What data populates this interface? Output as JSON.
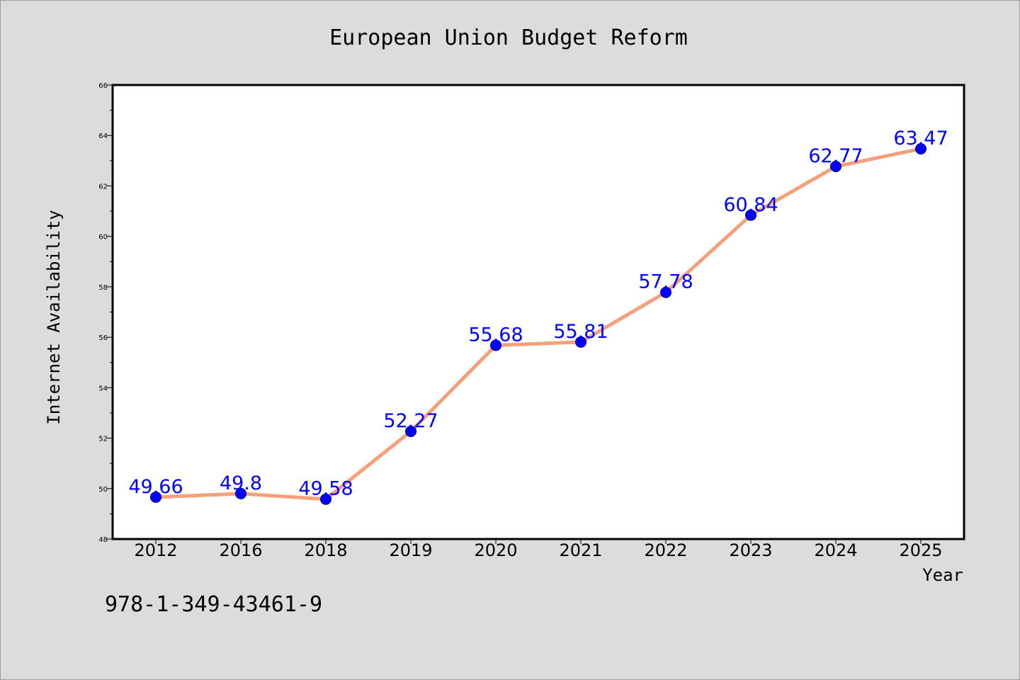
{
  "chart_data": {
    "type": "line",
    "title": "European Union Budget Reform",
    "xlabel": "Year",
    "ylabel": "Internet Availability",
    "categories": [
      "2012",
      "2016",
      "2018",
      "2019",
      "2020",
      "2021",
      "2022",
      "2023",
      "2024",
      "2025"
    ],
    "series": [
      {
        "values": [
          49.66,
          49.8,
          49.58,
          52.27,
          55.68,
          55.81,
          57.78,
          60.84,
          62.77,
          63.47
        ],
        "labels": [
          "49.66",
          "49.8",
          "49.58",
          "52.27",
          "55.68",
          "55.81",
          "57.78",
          "60.84",
          "62.77",
          "63.47"
        ]
      }
    ],
    "ylim": [
      48,
      66
    ],
    "yticks": [
      "48",
      "50",
      "52",
      "54",
      "56",
      "58",
      "60",
      "62",
      "64",
      "66"
    ],
    "grid": false,
    "line_color": "#f4a07a",
    "marker_color": "#0000ff",
    "label_color": "#0000ff"
  },
  "footer_text": "978-1-349-43461-9"
}
